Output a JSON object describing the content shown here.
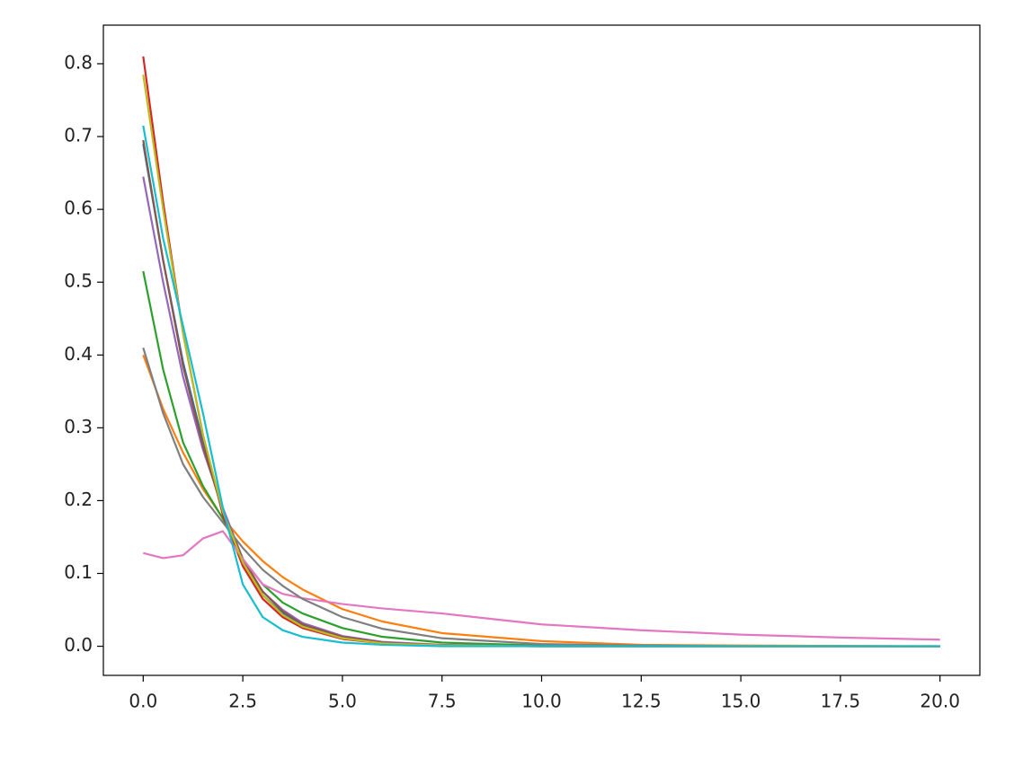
{
  "chart_data": {
    "type": "line",
    "x": [
      0,
      0.5,
      1,
      1.5,
      2,
      2.5,
      3,
      3.5,
      4,
      5,
      6,
      7.5,
      10,
      12.5,
      15,
      17.5,
      20
    ],
    "series": [
      {
        "color": "#1f77b4",
        "values": [
          0.69,
          0.53,
          0.39,
          0.28,
          0.185,
          0.115,
          0.07,
          0.045,
          0.028,
          0.012,
          0.005,
          0.001,
          0,
          0,
          0,
          0,
          0
        ]
      },
      {
        "color": "#ff7f0e",
        "values": [
          0.4,
          0.326,
          0.266,
          0.216,
          0.176,
          0.144,
          0.117,
          0.095,
          0.078,
          0.051,
          0.034,
          0.018,
          0.007,
          0.002,
          0.001,
          0.0005,
          0.0002
        ]
      },
      {
        "color": "#2ca02c",
        "values": [
          0.515,
          0.38,
          0.28,
          0.22,
          0.175,
          0.12,
          0.085,
          0.06,
          0.045,
          0.025,
          0.013,
          0.005,
          0.001,
          0,
          0,
          0,
          0
        ]
      },
      {
        "color": "#d62728",
        "values": [
          0.81,
          0.61,
          0.43,
          0.29,
          0.18,
          0.11,
          0.065,
          0.04,
          0.025,
          0.01,
          0.004,
          0.001,
          0,
          0,
          0,
          0,
          0
        ]
      },
      {
        "color": "#9467bd",
        "values": [
          0.645,
          0.5,
          0.37,
          0.27,
          0.19,
          0.12,
          0.075,
          0.05,
          0.032,
          0.014,
          0.006,
          0.002,
          0,
          0,
          0,
          0,
          0
        ]
      },
      {
        "color": "#8c564b",
        "values": [
          0.695,
          0.53,
          0.385,
          0.275,
          0.185,
          0.12,
          0.075,
          0.048,
          0.03,
          0.013,
          0.005,
          0.001,
          0,
          0,
          0,
          0,
          0
        ]
      },
      {
        "color": "#e377c2",
        "values": [
          0.128,
          0.121,
          0.125,
          0.148,
          0.158,
          0.12,
          0.085,
          0.072,
          0.066,
          0.058,
          0.052,
          0.045,
          0.03,
          0.022,
          0.016,
          0.012,
          0.009
        ]
      },
      {
        "color": "#7f7f7f",
        "values": [
          0.41,
          0.32,
          0.25,
          0.205,
          0.17,
          0.135,
          0.105,
          0.083,
          0.065,
          0.04,
          0.024,
          0.011,
          0.003,
          0.001,
          0,
          0,
          0
        ]
      },
      {
        "color": "#bcbd22",
        "values": [
          0.785,
          0.6,
          0.43,
          0.29,
          0.185,
          0.115,
          0.07,
          0.043,
          0.027,
          0.011,
          0.004,
          0.001,
          0,
          0,
          0,
          0,
          0
        ]
      },
      {
        "color": "#17becf",
        "values": [
          0.715,
          0.56,
          0.44,
          0.32,
          0.19,
          0.085,
          0.04,
          0.022,
          0.013,
          0.005,
          0.002,
          0,
          0,
          0,
          0,
          0,
          0
        ]
      }
    ],
    "xlim": [
      -1,
      21
    ],
    "ylim": [
      -0.04,
      0.853
    ],
    "xticks": [
      {
        "value": 0,
        "label": "0.0"
      },
      {
        "value": 2.5,
        "label": "2.5"
      },
      {
        "value": 5,
        "label": "5.0"
      },
      {
        "value": 7.5,
        "label": "7.5"
      },
      {
        "value": 10,
        "label": "10.0"
      },
      {
        "value": 12.5,
        "label": "12.5"
      },
      {
        "value": 15,
        "label": "15.0"
      },
      {
        "value": 17.5,
        "label": "17.5"
      },
      {
        "value": 20,
        "label": "20.0"
      }
    ],
    "yticks": [
      {
        "value": 0,
        "label": "0.0"
      },
      {
        "value": 0.1,
        "label": "0.1"
      },
      {
        "value": 0.2,
        "label": "0.2"
      },
      {
        "value": 0.3,
        "label": "0.3"
      },
      {
        "value": 0.4,
        "label": "0.4"
      },
      {
        "value": 0.5,
        "label": "0.5"
      },
      {
        "value": 0.6,
        "label": "0.6"
      },
      {
        "value": 0.7,
        "label": "0.7"
      },
      {
        "value": 0.8,
        "label": "0.8"
      }
    ],
    "grid": false
  }
}
